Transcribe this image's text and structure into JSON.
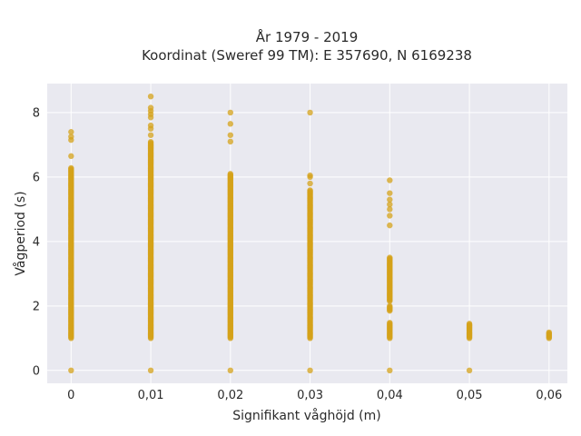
{
  "chart_data": {
    "type": "scatter",
    "title_line1": "År 1979 - 2019",
    "title_line2": "Koordinat (Sweref 99 TM): E 357690, N 6169238",
    "xlabel": "Signifikant våghöjd (m)",
    "ylabel": "Vågperiod (s)",
    "xlim": [
      -0.003,
      0.0623
    ],
    "ylim": [
      -0.4,
      8.9
    ],
    "x_ticks": [
      0,
      0.01,
      0.02,
      0.03,
      0.04,
      0.05,
      0.06
    ],
    "x_tick_labels": [
      "0",
      "0,01",
      "0,02",
      "0,03",
      "0,04",
      "0,05",
      "0,06"
    ],
    "y_ticks": [
      0,
      2,
      4,
      6,
      8
    ],
    "y_tick_labels": [
      "0",
      "2",
      "4",
      "6",
      "8"
    ],
    "grid": true,
    "point_color": "#d4a21a",
    "background_color": "#e9e9f0",
    "series": [
      {
        "columns": [
          {
            "x": 0,
            "ranges": [
              [
                1.0,
                6.3
              ]
            ],
            "points": [
              0,
              6.65,
              7.15,
              7.25,
              7.4
            ]
          },
          {
            "x": 0.01,
            "ranges": [
              [
                1.0,
                7.1
              ]
            ],
            "points": [
              0,
              7.3,
              7.5,
              7.6,
              7.85,
              7.95,
              8.05,
              8.15,
              8.5
            ]
          },
          {
            "x": 0.02,
            "ranges": [
              [
                1.0,
                6.1
              ]
            ],
            "points": [
              0,
              7.1,
              7.3,
              7.65,
              8.0
            ]
          },
          {
            "x": 0.03,
            "ranges": [
              [
                1.0,
                5.6
              ]
            ],
            "points": [
              0,
              5.8,
              6.0,
              6.05,
              8.0
            ]
          },
          {
            "x": 0.04,
            "ranges": [
              [
                1.0,
                1.5
              ],
              [
                1.85,
                2.0
              ],
              [
                2.15,
                3.5
              ]
            ],
            "points": [
              0,
              4.5,
              4.8,
              5.0,
              5.15,
              5.3,
              5.5,
              5.9
            ]
          },
          {
            "x": 0.05,
            "ranges": [
              [
                1.0,
                1.45
              ]
            ],
            "points": [
              0
            ]
          },
          {
            "x": 0.06,
            "ranges": [
              [
                1.0,
                1.2
              ]
            ],
            "points": []
          }
        ]
      }
    ]
  }
}
